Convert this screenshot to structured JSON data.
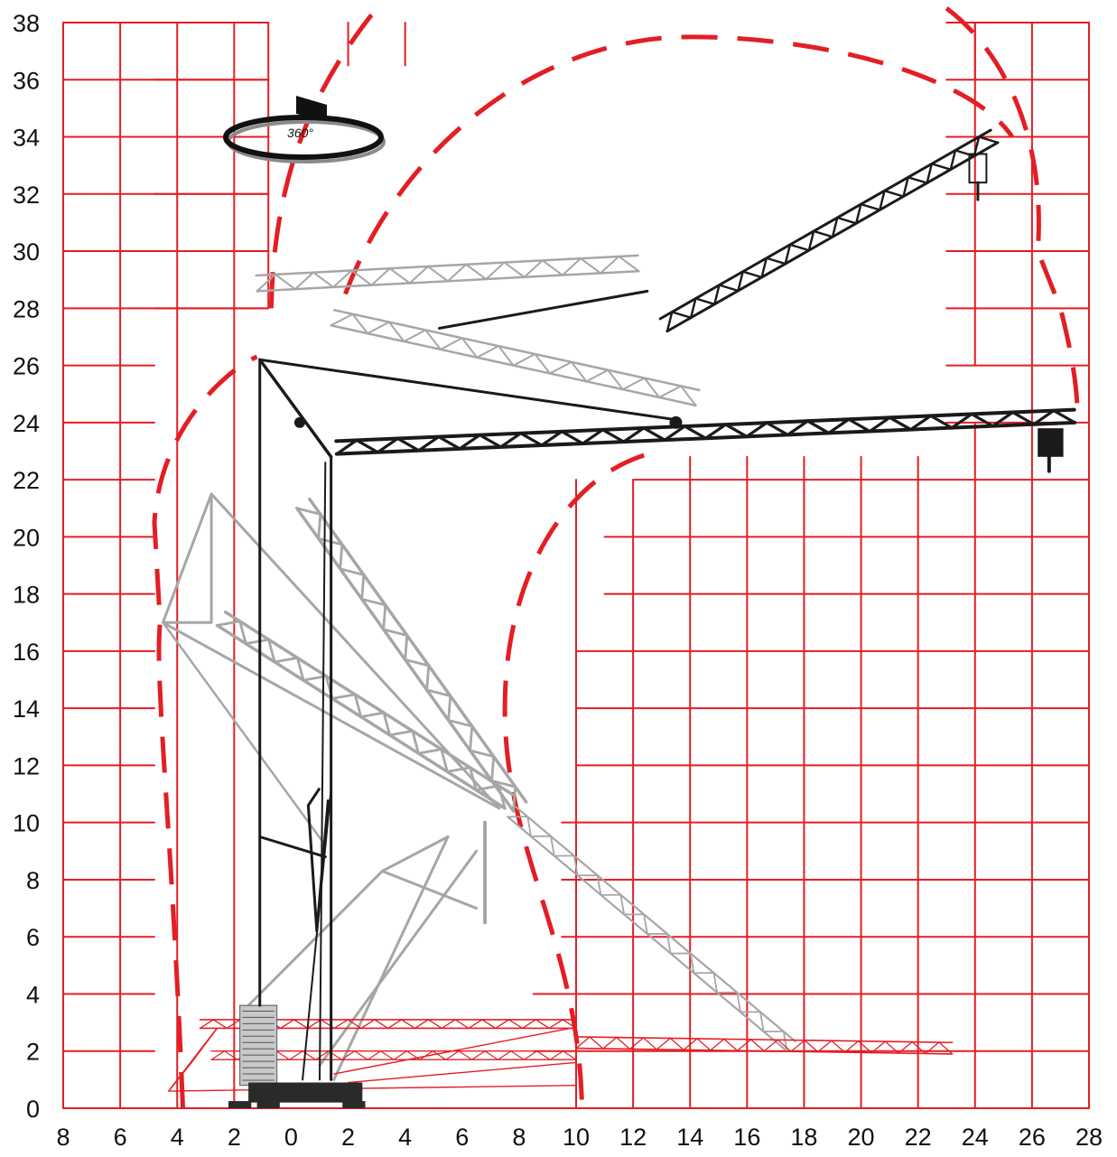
{
  "diagram": {
    "type": "crane working range diagram",
    "x_tick_labels": [
      "8",
      "6",
      "4",
      "2",
      "0",
      "2",
      "4",
      "6",
      "8",
      "10",
      "12",
      "14",
      "16",
      "18",
      "20",
      "22",
      "24",
      "26",
      "28"
    ],
    "y_tick_labels": [
      "0",
      "2",
      "4",
      "6",
      "8",
      "10",
      "12",
      "14",
      "16",
      "18",
      "20",
      "22",
      "24",
      "26",
      "28",
      "30",
      "32",
      "34",
      "36",
      "38"
    ],
    "x_range": [
      -8,
      28
    ],
    "y_range": [
      0,
      38
    ],
    "rotation_label": "360°",
    "colors": {
      "grid": "#e31e24",
      "envelope": "#e31e24",
      "working_crane": "#1a1a1a",
      "erection_stages": "#a6a6a6",
      "transport_position": "#e31e24"
    }
  }
}
